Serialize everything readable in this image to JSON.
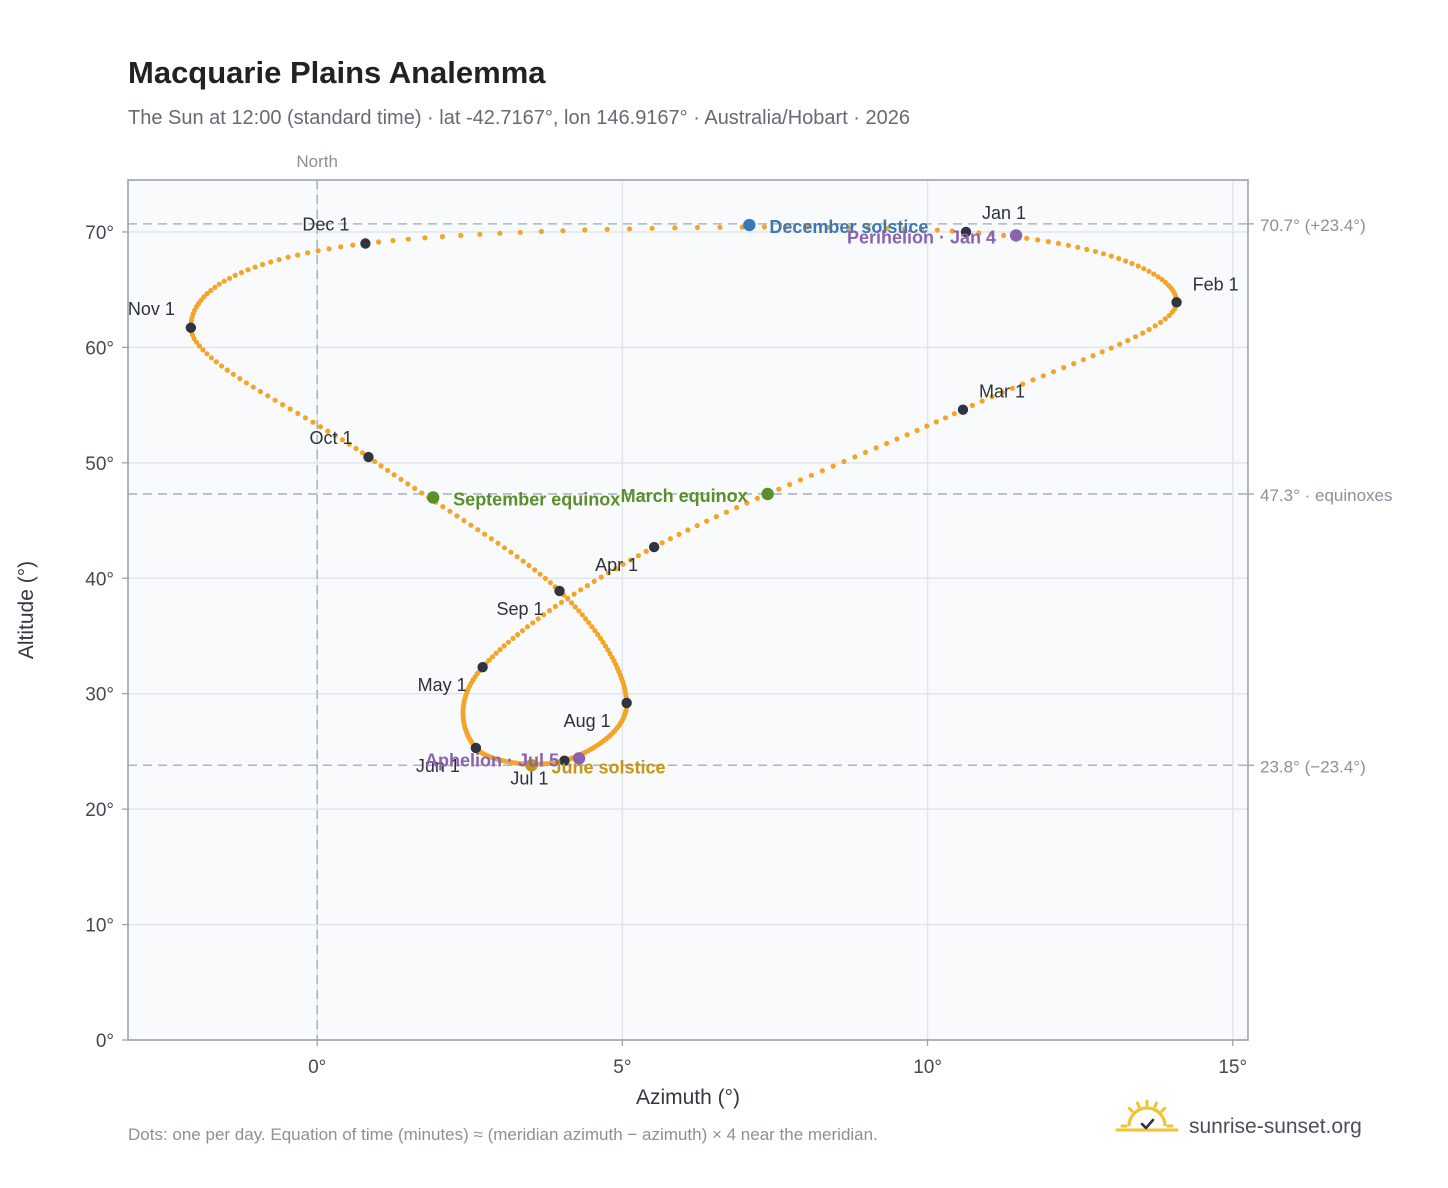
{
  "chart_data": {
    "type": "scatter",
    "title": "Macquarie Plains Analemma",
    "subtitle": "The Sun at 12:00 (standard time) · lat -42.7167°, lon 146.9167° · Australia/Hobart · 2026",
    "xlabel": "Azimuth (°)",
    "ylabel": "Altitude (°)",
    "xlim": [
      -3.1,
      15.25
    ],
    "ylim": [
      0,
      74.5
    ],
    "x_ticks": [
      {
        "value": 0,
        "label": "0°"
      },
      {
        "value": 5,
        "label": "5°"
      },
      {
        "value": 10,
        "label": "10°"
      },
      {
        "value": 15,
        "label": "15°"
      }
    ],
    "y_ticks": [
      {
        "value": 0,
        "label": "0°"
      },
      {
        "value": 10,
        "label": "10°"
      },
      {
        "value": 20,
        "label": "20°"
      },
      {
        "value": 30,
        "label": "30°"
      },
      {
        "value": 40,
        "label": "40°"
      },
      {
        "value": 50,
        "label": "50°"
      },
      {
        "value": 60,
        "label": "60°"
      },
      {
        "value": 70,
        "label": "70°"
      }
    ],
    "grid": true,
    "north_line": {
      "x": 0,
      "label": "North"
    },
    "reference_lines": [
      {
        "y": 70.7,
        "label": "70.7° (+23.4°)"
      },
      {
        "y": 47.3,
        "label": "47.3° · equinoxes"
      },
      {
        "y": 23.8,
        "label": "23.8° (−23.4°)"
      }
    ],
    "daily_path_color": "#f3a52a",
    "month_points": [
      {
        "label": "Jan 1",
        "x": 10.63,
        "y": 70.0,
        "anchor": "start",
        "dx": 16,
        "dy": -13
      },
      {
        "label": "Feb 1",
        "x": 14.08,
        "y": 63.9,
        "anchor": "start",
        "dx": 16,
        "dy": -12
      },
      {
        "label": "Mar 1",
        "x": 10.58,
        "y": 54.6,
        "anchor": "start",
        "dx": 16,
        "dy": -12
      },
      {
        "label": "Apr 1",
        "x": 5.52,
        "y": 42.7,
        "anchor": "end",
        "dx": -16,
        "dy": 24
      },
      {
        "label": "May 1",
        "x": 2.71,
        "y": 32.3,
        "anchor": "end",
        "dx": -16,
        "dy": 24
      },
      {
        "label": "Jun 1",
        "x": 2.6,
        "y": 25.3,
        "anchor": "end",
        "dx": -16,
        "dy": 24
      },
      {
        "label": "Jul 1",
        "x": 4.05,
        "y": 24.2,
        "anchor": "end",
        "dx": -16,
        "dy": 24
      },
      {
        "label": "Aug 1",
        "x": 5.07,
        "y": 29.2,
        "anchor": "end",
        "dx": -16,
        "dy": 24
      },
      {
        "label": "Sep 1",
        "x": 3.97,
        "y": 38.9,
        "anchor": "end",
        "dx": -16,
        "dy": 24
      },
      {
        "label": "Oct 1",
        "x": 0.84,
        "y": 50.5,
        "anchor": "end",
        "dx": -16,
        "dy": -13
      },
      {
        "label": "Nov 1",
        "x": -2.07,
        "y": 61.7,
        "anchor": "end",
        "dx": -16,
        "dy": -13
      },
      {
        "label": "Dec 1",
        "x": 0.79,
        "y": 69.0,
        "anchor": "end",
        "dx": -16,
        "dy": -13
      }
    ],
    "events": [
      {
        "label": "March equinox",
        "x": 7.38,
        "y": 47.3,
        "color": "#5a8f2b",
        "anchor": "end",
        "dx": -20,
        "dy": 8
      },
      {
        "label": "June solstice",
        "x": 3.51,
        "y": 23.8,
        "color": "#c49518",
        "anchor": "start",
        "dx": 20,
        "dy": 8
      },
      {
        "label": "September equinox",
        "x": 1.9,
        "y": 47.0,
        "color": "#5a8f2b",
        "anchor": "start",
        "dx": 20,
        "dy": 8
      },
      {
        "label": "December solstice",
        "x": 7.08,
        "y": 70.6,
        "color": "#3a78b8",
        "anchor": "start",
        "dx": 20,
        "dy": 8
      },
      {
        "label": "Perihelion · Jan 4",
        "x": 11.45,
        "y": 69.7,
        "color": "#8a63b0",
        "anchor": "end",
        "dx": -20,
        "dy": 8
      },
      {
        "label": "Aphelion · Jul 5",
        "x": 4.29,
        "y": 24.4,
        "color": "#8a63b0",
        "anchor": "end",
        "dx": -20,
        "dy": 8
      }
    ]
  },
  "footnote": "Dots: one per day. Equation of time (minutes) ≈ (meridian azimuth − azimuth) × 4 near the meridian.",
  "brand": {
    "name": "sunrise-sunset.org",
    "icon": "sun-logo-icon",
    "icon_color": "#f2c230"
  }
}
